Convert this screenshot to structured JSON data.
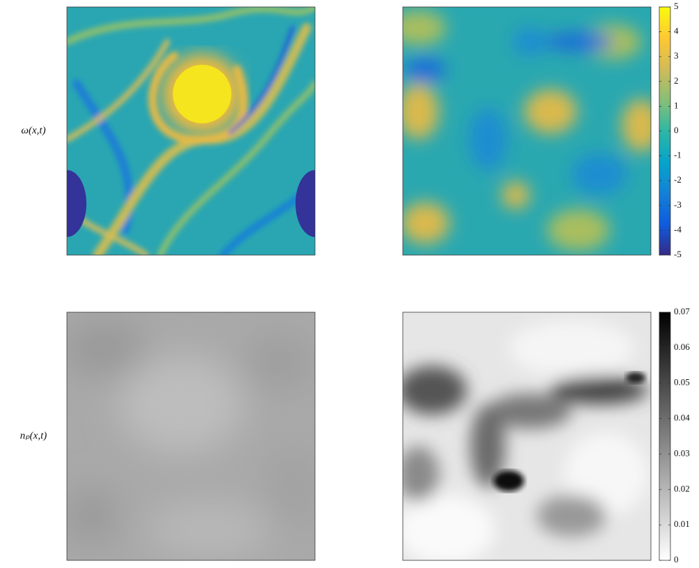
{
  "chart_data": [
    {
      "type": "heatmap",
      "row_label": "ω(x,t)",
      "colors": [
        "#352a87",
        "#0f5cdd",
        "#1481d6",
        "#06a4ca",
        "#2eb7a4",
        "#87bf77",
        "#d1bb59",
        "#fec832",
        "#f9fb0e"
      ],
      "ylim": [
        -5,
        5
      ],
      "yticks": [
        -5,
        -4,
        -3,
        -2,
        -1,
        0,
        1,
        2,
        3,
        4,
        5
      ]
    },
    {
      "type": "heatmap",
      "row_label": "nₚ(x,t)",
      "colors": [
        "#ffffff",
        "#000000"
      ],
      "ylim": [
        0,
        0.07
      ],
      "yticks": [
        0,
        0.01,
        0.02,
        0.03,
        0.04,
        0.05,
        0.06,
        0.07
      ]
    }
  ]
}
